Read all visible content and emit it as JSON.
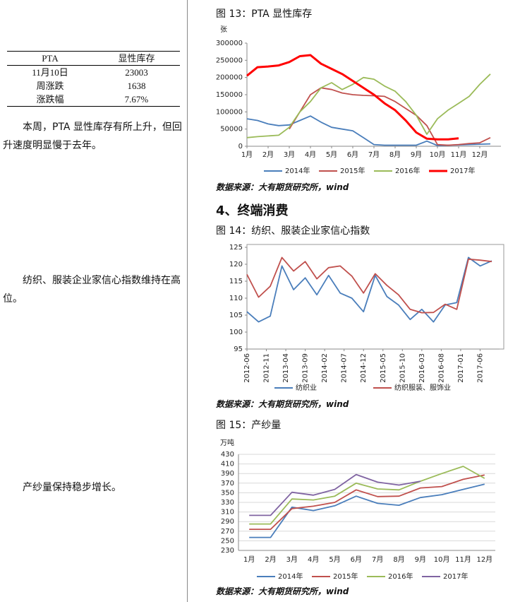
{
  "left": {
    "table": {
      "header": [
        "PTA",
        "显性库存"
      ],
      "rows": [
        [
          "11月10日",
          "23003"
        ],
        [
          "周涨跌",
          "1638"
        ],
        [
          "涨跌幅",
          "7.67%"
        ]
      ]
    },
    "paragraphs": [
      "本周，PTA 显性库存有所上升，但回升速度明显慢于去年。",
      "纺织、服装企业家信心指数维持在高位。",
      "产纱量保持稳步增长。"
    ]
  },
  "heading": "4、终端消费",
  "chart_data": [
    {
      "type": "line",
      "title": "图 13：PTA 显性库存",
      "unit": "张",
      "source": "数据来源：大有期货研究所，wind",
      "grid": false,
      "x": [
        1,
        1.5,
        2,
        2.5,
        3,
        3.5,
        4,
        4.5,
        5,
        5.5,
        6,
        6.5,
        7,
        7.5,
        8,
        8.5,
        9,
        9.5,
        10,
        10.5,
        11,
        11.5,
        12,
        12.5
      ],
      "xlim": [
        1,
        13
      ],
      "xticks": [
        {
          "value": 1,
          "label": "1月"
        },
        {
          "value": 2,
          "label": "2月"
        },
        {
          "value": 3,
          "label": "3月"
        },
        {
          "value": 4,
          "label": "4月"
        },
        {
          "value": 5,
          "label": "5月"
        },
        {
          "value": 6,
          "label": "6月"
        },
        {
          "value": 7,
          "label": "7月"
        },
        {
          "value": 8,
          "label": "8月"
        },
        {
          "value": 9,
          "label": "9月"
        },
        {
          "value": 10,
          "label": "10月"
        },
        {
          "value": 11,
          "label": "11月"
        },
        {
          "value": 12,
          "label": "12月"
        }
      ],
      "ylim": [
        0,
        300000
      ],
      "yticks": [
        0,
        50000,
        100000,
        150000,
        200000,
        250000,
        300000
      ],
      "series": [
        {
          "name": "2014年",
          "color": "#4a7ebb",
          "values": [
            80000,
            75000,
            65000,
            60000,
            62000,
            75000,
            88000,
            70000,
            55000,
            50000,
            45000,
            25000,
            5000,
            3000,
            3000,
            3000,
            3000,
            15000,
            2000,
            3000,
            4000,
            5000,
            6000,
            7000
          ]
        },
        {
          "name": "2015年",
          "color": "#c0504d",
          "values": [
            null,
            null,
            null,
            null,
            50000,
            100000,
            150000,
            170000,
            165000,
            155000,
            150000,
            148000,
            147000,
            145000,
            130000,
            110000,
            90000,
            60000,
            5000,
            3000,
            5000,
            8000,
            10000,
            25000
          ]
        },
        {
          "name": "2016年",
          "color": "#9bbb59",
          "values": [
            25000,
            28000,
            30000,
            32000,
            55000,
            100000,
            130000,
            170000,
            185000,
            165000,
            180000,
            200000,
            195000,
            175000,
            160000,
            130000,
            90000,
            35000,
            80000,
            105000,
            125000,
            145000,
            180000,
            210000
          ]
        },
        {
          "name": "2017年",
          "color": "#ff0000",
          "line_width": 3,
          "values": [
            205000,
            230000,
            232000,
            235000,
            245000,
            262000,
            265000,
            240000,
            225000,
            210000,
            190000,
            170000,
            150000,
            125000,
            105000,
            75000,
            40000,
            22000,
            20000,
            20000,
            23000,
            null,
            null,
            null
          ]
        }
      ]
    },
    {
      "type": "line",
      "title": "图 14：纺织、服装企业家信心指数",
      "source": "数据来源：大有期货研究所，wind",
      "grid": false,
      "frame": true,
      "rotate_x_labels": true,
      "x": [
        0,
        3,
        6,
        9,
        12,
        15,
        18,
        21,
        24,
        27,
        30,
        33,
        36,
        39,
        42,
        45,
        48,
        51,
        54,
        57,
        60,
        63
      ],
      "xlim": [
        0,
        65
      ],
      "xticks": [
        {
          "value": 0,
          "label": "2012-06"
        },
        {
          "value": 5,
          "label": "2012-11"
        },
        {
          "value": 10,
          "label": "2013-04"
        },
        {
          "value": 15,
          "label": "2013-09"
        },
        {
          "value": 20,
          "label": "2014-02"
        },
        {
          "value": 25,
          "label": "2014-07"
        },
        {
          "value": 30,
          "label": "2014-12"
        },
        {
          "value": 35,
          "label": "2015-05"
        },
        {
          "value": 40,
          "label": "2015-10"
        },
        {
          "value": 45,
          "label": "2016-03"
        },
        {
          "value": 50,
          "label": "2016-08"
        },
        {
          "value": 55,
          "label": "2017-01"
        },
        {
          "value": 60,
          "label": "2017-06"
        }
      ],
      "ylim": [
        95,
        125
      ],
      "yticks": [
        95,
        100,
        105,
        110,
        115,
        120,
        125
      ],
      "series": [
        {
          "name": "纺织业",
          "color": "#4a7ebb",
          "values": [
            106,
            103,
            104.7,
            119.5,
            112.5,
            116,
            111,
            116.7,
            111.5,
            110,
            106,
            116.7,
            110.5,
            108,
            103.7,
            106.7,
            103,
            108,
            108.7,
            122,
            119.5,
            121
          ]
        },
        {
          "name": "纺织服装、服饰业",
          "color": "#c0504d",
          "values": [
            117,
            110.3,
            113.5,
            122,
            118,
            120.8,
            115.7,
            119,
            119.5,
            116.5,
            111.5,
            117.2,
            113.8,
            111,
            106.7,
            105.7,
            105.8,
            108.2,
            106.7,
            121.5,
            121.2,
            120.8
          ]
        }
      ]
    },
    {
      "type": "line",
      "title": "图 15：产纱量",
      "unit": "万吨",
      "source": "数据来源：大有期货研究所，wind",
      "grid": true,
      "categories": [
        "1月",
        "2月",
        "3月",
        "4月",
        "5月",
        "6月",
        "7月",
        "8月",
        "9月",
        "10月",
        "11月",
        "12月"
      ],
      "ylim": [
        230,
        430
      ],
      "yticks": [
        230,
        250,
        270,
        290,
        310,
        330,
        350,
        370,
        390,
        410,
        430
      ],
      "series": [
        {
          "name": "2014年",
          "color": "#4a7ebb",
          "values": [
            257,
            257,
            320,
            313,
            323,
            343,
            328,
            324,
            340,
            346,
            357,
            368
          ]
        },
        {
          "name": "2015年",
          "color": "#c0504d",
          "values": [
            274,
            274,
            317,
            322,
            330,
            356,
            342,
            343,
            360,
            363,
            378,
            387
          ]
        },
        {
          "name": "2016年",
          "color": "#9bbb59",
          "values": [
            285,
            285,
            337,
            335,
            343,
            370,
            358,
            356,
            374,
            390,
            405,
            380
          ]
        },
        {
          "name": "2017年",
          "color": "#8064a2",
          "values": [
            303,
            303,
            351,
            345,
            357,
            388,
            372,
            366,
            374,
            null,
            null,
            null
          ]
        }
      ]
    }
  ]
}
